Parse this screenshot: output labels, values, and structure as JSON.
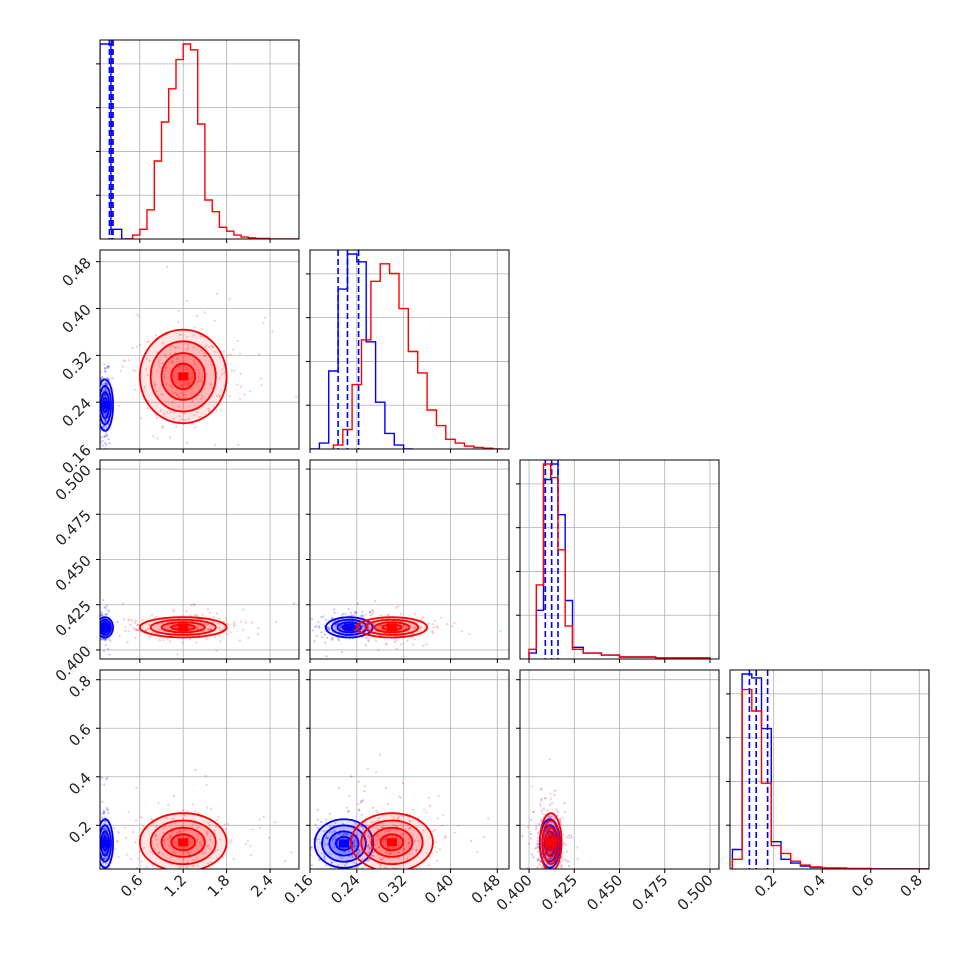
{
  "chart_data": {
    "type": "corner",
    "title": "",
    "grid": true,
    "colors": {
      "series_a": "#0000ff",
      "series_b": "#ff0000"
    },
    "variables": [
      {
        "range": [
          0.05,
          2.8
        ],
        "ticks": [
          "0.6",
          "1.2",
          "1.8",
          "2.4"
        ],
        "tick_values": [
          0.6,
          1.2,
          1.8,
          2.4
        ]
      },
      {
        "range": [
          0.16,
          0.5
        ],
        "ticks": [
          "0.16",
          "0.24",
          "0.32",
          "0.40",
          "0.48"
        ],
        "tick_values": [
          0.16,
          0.24,
          0.32,
          0.4,
          0.48
        ]
      },
      {
        "range": [
          0.395,
          0.505
        ],
        "ticks": [
          "0.400",
          "0.425",
          "0.450",
          "0.475",
          "0.500"
        ],
        "tick_values": [
          0.4,
          0.425,
          0.45,
          0.475,
          0.5
        ]
      },
      {
        "range": [
          0.02,
          0.84
        ],
        "ticks": [
          "0.2",
          "0.4",
          "0.6",
          "0.8"
        ],
        "tick_values": [
          0.2,
          0.4,
          0.6,
          0.8
        ]
      }
    ],
    "series": [
      {
        "color": "#0000ff",
        "histograms": [
          {
            "edges": [
              0.05,
              0.2,
              0.35,
              0.5
            ],
            "heights": [
              1.0,
              0.05,
              0.0
            ]
          },
          {
            "edges": [
              0.16,
              0.176,
              0.192,
              0.208,
              0.224,
              0.24,
              0.256,
              0.272,
              0.288,
              0.304,
              0.32,
              0.336
            ],
            "heights": [
              0.0,
              0.03,
              0.4,
              0.82,
              1.0,
              0.96,
              0.55,
              0.24,
              0.08,
              0.02,
              0.0
            ]
          },
          {
            "edges": [
              0.4,
              0.404,
              0.408,
              0.412,
              0.416,
              0.42,
              0.424,
              0.43,
              0.44,
              0.45,
              0.47,
              0.5
            ],
            "heights": [
              0.03,
              0.25,
              0.92,
              1.0,
              0.74,
              0.3,
              0.06,
              0.03,
              0.02,
              0.01,
              0.005
            ]
          },
          {
            "edges": [
              0.03,
              0.07,
              0.11,
              0.15,
              0.19,
              0.23,
              0.27,
              0.31,
              0.35,
              0.4,
              0.5,
              0.6,
              0.84
            ],
            "heights": [
              0.1,
              1.0,
              0.98,
              0.72,
              0.14,
              0.05,
              0.03,
              0.015,
              0.008,
              0.004,
              0.002,
              0.0
            ]
          }
        ],
        "quantiles": [
          [
            0.18,
            0.21,
            0.23
          ],
          [
            0.208,
            0.224,
            0.243
          ],
          [
            0.409,
            0.4125,
            0.416
          ],
          [
            0.1,
            0.128,
            0.175
          ]
        ],
        "peaks": [
          [
            null,
            null,
            null,
            null
          ],
          [
            0.12,
            0.235,
            null,
            null
          ],
          [
            0.12,
            0.227,
            0.4125,
            null
          ],
          [
            0.12,
            0.218,
            0.4115,
            0.125
          ]
        ],
        "spreads": [
          [
            null,
            null,
            null,
            null
          ],
          [
            0.03,
            0.022,
            null,
            null
          ],
          [
            0.03,
            0.02,
            0.0028,
            null
          ],
          [
            0.03,
            0.025,
            0.0028,
            0.05
          ]
        ]
      },
      {
        "color": "#ff0000",
        "histograms": [
          {
            "edges": [
              0.4,
              0.5,
              0.6,
              0.7,
              0.8,
              0.9,
              1.0,
              1.1,
              1.2,
              1.3,
              1.4,
              1.5,
              1.6,
              1.7,
              1.8,
              1.9,
              2.0,
              2.1,
              2.2,
              2.4,
              2.8
            ],
            "heights": [
              0.0,
              0.02,
              0.05,
              0.15,
              0.4,
              0.6,
              0.77,
              0.92,
              1.0,
              0.97,
              0.59,
              0.2,
              0.14,
              0.06,
              0.04,
              0.02,
              0.01,
              0.006,
              0.003,
              0.0
            ]
          },
          {
            "edges": [
              0.2,
              0.216,
              0.232,
              0.248,
              0.264,
              0.28,
              0.296,
              0.312,
              0.328,
              0.344,
              0.36,
              0.376,
              0.392,
              0.408,
              0.424,
              0.44,
              0.456,
              0.472,
              0.488
            ],
            "heights": [
              0.02,
              0.1,
              0.33,
              0.56,
              0.86,
              0.95,
              0.9,
              0.72,
              0.5,
              0.39,
              0.2,
              0.12,
              0.05,
              0.03,
              0.015,
              0.008,
              0.004,
              0.0
            ]
          },
          {
            "edges": [
              0.4,
              0.404,
              0.408,
              0.412,
              0.416,
              0.42,
              0.424,
              0.43,
              0.44,
              0.45,
              0.47,
              0.5
            ],
            "heights": [
              0.05,
              0.38,
              1.0,
              0.93,
              0.56,
              0.17,
              0.05,
              0.03,
              0.02,
              0.01,
              0.005
            ]
          },
          {
            "edges": [
              0.03,
              0.07,
              0.11,
              0.15,
              0.19,
              0.23,
              0.27,
              0.31,
              0.35,
              0.4,
              0.5,
              0.6,
              0.84
            ],
            "heights": [
              0.05,
              0.92,
              0.81,
              0.44,
              0.12,
              0.08,
              0.04,
              0.02,
              0.01,
              0.005,
              0.002,
              0.0
            ]
          }
        ],
        "quantiles": [],
        "peaks": [
          [
            null,
            null,
            null,
            null
          ],
          [
            1.2,
            0.284,
            null,
            null
          ],
          [
            1.2,
            0.3,
            0.4125,
            null
          ],
          [
            1.2,
            0.3,
            0.412,
            0.13
          ]
        ],
        "spreads": [
          [
            null,
            null,
            null,
            null
          ],
          [
            0.3,
            0.04,
            null,
            null
          ],
          [
            0.3,
            0.03,
            0.0028,
            null
          ],
          [
            0.3,
            0.035,
            0.003,
            0.06
          ]
        ]
      }
    ]
  }
}
